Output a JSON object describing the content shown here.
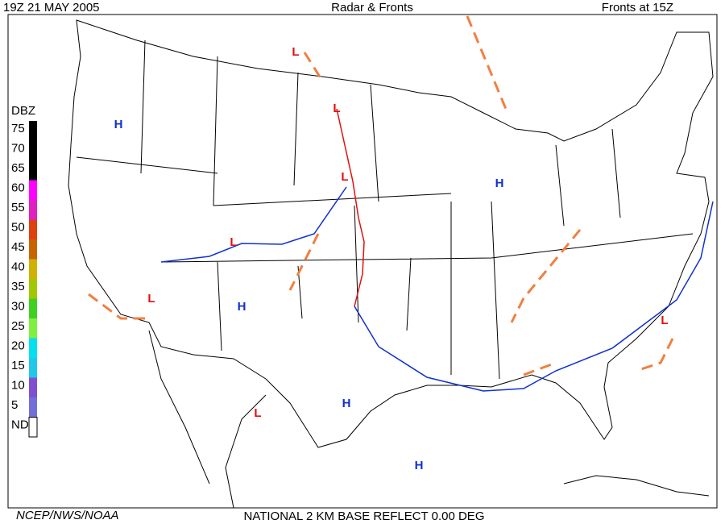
{
  "header": {
    "left": "19Z  21 MAY  2005",
    "center": "Radar & Fronts",
    "right": "Fronts at 15Z"
  },
  "legend": {
    "title": "DBZ",
    "entries": [
      {
        "label": 75,
        "color": "#000000"
      },
      {
        "label": 70,
        "color": "#000000"
      },
      {
        "label": 65,
        "color": "#000000"
      },
      {
        "label": 60,
        "color": "#ff00ff"
      },
      {
        "label": 55,
        "color": "#e020c0"
      },
      {
        "label": 50,
        "color": "#e04010"
      },
      {
        "label": 45,
        "color": "#c86400"
      },
      {
        "label": 40,
        "color": "#d0b000"
      },
      {
        "label": 35,
        "color": "#a0c800"
      },
      {
        "label": 30,
        "color": "#40d020"
      },
      {
        "label": 25,
        "color": "#80f040"
      },
      {
        "label": 20,
        "color": "#00e0f0"
      },
      {
        "label": 15,
        "color": "#20c8e8"
      },
      {
        "label": 10,
        "color": "#8050d0"
      },
      {
        "label": 5,
        "color": "#7070d8"
      },
      {
        "label": "ND",
        "color": "#ffffff"
      }
    ]
  },
  "pressure_centers": [
    {
      "label": "H",
      "color": "#1030d0"
    },
    {
      "label": "H",
      "color": "#1030d0"
    },
    {
      "label": "H",
      "color": "#1030d0"
    },
    {
      "label": "H",
      "color": "#1030d0"
    },
    {
      "label": "H",
      "color": "#1030d0"
    },
    {
      "label": "L",
      "color": "#e01010"
    },
    {
      "label": "L",
      "color": "#e01010"
    },
    {
      "label": "L",
      "color": "#e01010"
    },
    {
      "label": "L",
      "color": "#e01010"
    },
    {
      "label": "L",
      "color": "#e01010"
    },
    {
      "label": "L",
      "color": "#e01010"
    },
    {
      "label": "L",
      "color": "#e01010"
    }
  ],
  "footer": {
    "left": "NCEP/NWS/NOAA",
    "center": "NATIONAL 2 KM BASE REFLECT 0.00 DEG"
  }
}
